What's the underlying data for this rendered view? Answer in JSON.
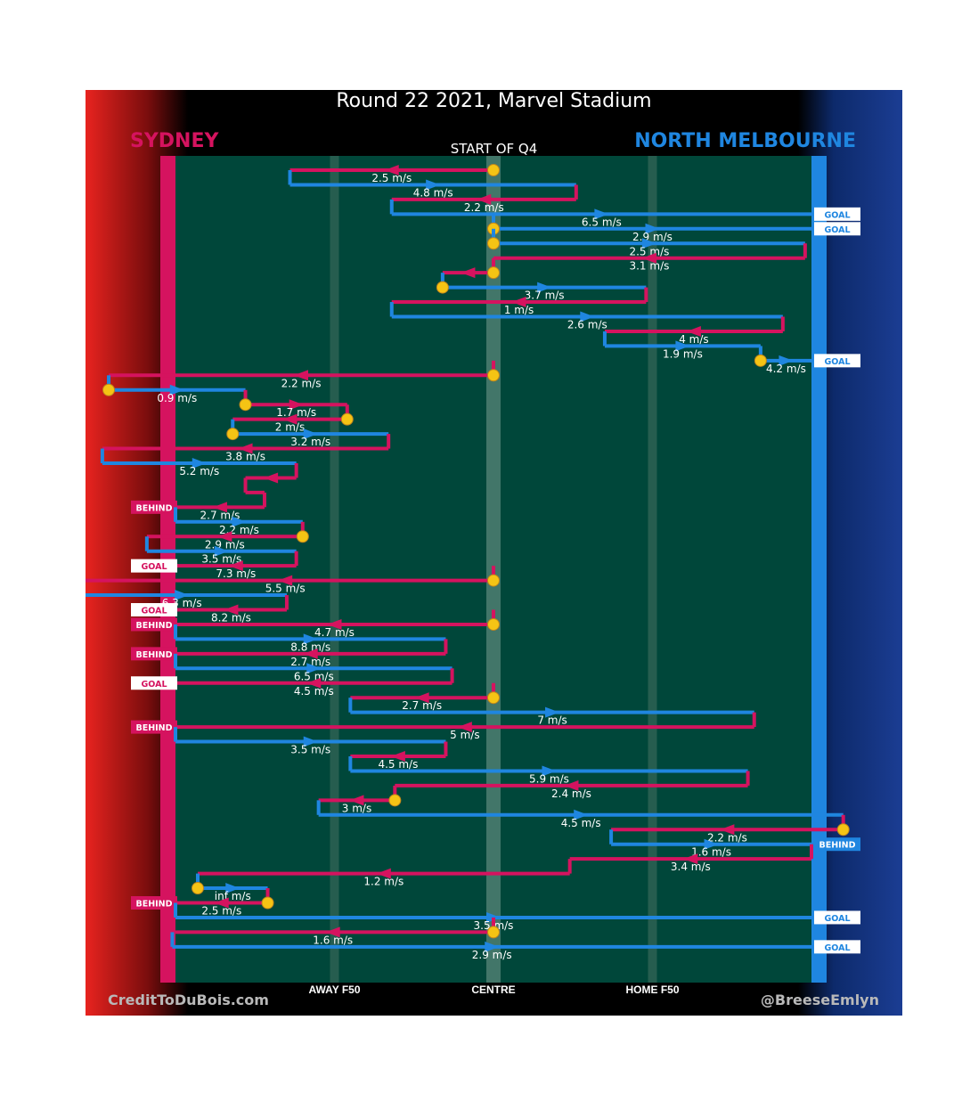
{
  "header": {
    "title": "Round 22 2021, Marvel Stadium",
    "team_left": "SYDNEY",
    "team_right": "NORTH MELBOURNE",
    "period": "START OF Q4"
  },
  "footer": {
    "left": "CreditToDuBois.com",
    "right": "@BreeseEmlyn"
  },
  "colors": {
    "sydney": "#d5135f",
    "north": "#1f86e0",
    "field": "#00473a",
    "stoppage": "#f5c414"
  },
  "chart_data": {
    "type": "chains",
    "title": "Round 22 2021, Marvel Stadium",
    "subtitle": "START OF Q4",
    "field_range": [
      -100,
      100
    ],
    "field_markers": [
      {
        "label": "AWAY F50",
        "x": -50
      },
      {
        "label": "CENTRE",
        "x": 0
      },
      {
        "label": "HOME F50",
        "x": 50
      }
    ],
    "chains": [
      {
        "team": "sydney",
        "from": 0,
        "to": -64,
        "speed": "2.5 m/s",
        "start": "stoppage"
      },
      {
        "team": "north",
        "from": -64,
        "to": 26,
        "speed": "4.8 m/s"
      },
      {
        "team": "sydney",
        "from": 26,
        "to": -32,
        "speed": "2.2 m/s"
      },
      {
        "team": "north",
        "from": -32,
        "to": 100,
        "speed": "6.5 m/s",
        "result": "GOAL"
      },
      {
        "team": "north",
        "from": 0,
        "to": 100,
        "speed": "2.9 m/s",
        "start": "stoppage",
        "result": "GOAL"
      },
      {
        "team": "north",
        "from": 0,
        "to": 98,
        "speed": "2.5 m/s",
        "start": "stoppage"
      },
      {
        "team": "sydney",
        "from": 98,
        "to": 0,
        "speed": "3.1 m/s"
      },
      {
        "team": "sydney",
        "from": 0,
        "to": -16,
        "speed": "",
        "start": "stoppage"
      },
      {
        "team": "north",
        "from": -16,
        "to": 48,
        "speed": "3.7 m/s",
        "start": "stoppage"
      },
      {
        "team": "sydney",
        "from": 48,
        "to": -32,
        "speed": "1 m/s"
      },
      {
        "team": "north",
        "from": -32,
        "to": 91,
        "speed": "2.6 m/s"
      },
      {
        "team": "sydney",
        "from": 91,
        "to": 35,
        "speed": "4 m/s"
      },
      {
        "team": "north",
        "from": 35,
        "to": 84,
        "speed": "1.9 m/s"
      },
      {
        "team": "north",
        "from": 84,
        "to": 100,
        "speed": "4.2 m/s",
        "start": "stoppage",
        "result": "GOAL"
      },
      {
        "team": "sydney",
        "from": 0,
        "to": -121,
        "speed": "2.2 m/s",
        "start": "stoppage"
      },
      {
        "team": "north",
        "from": -121,
        "to": -78,
        "speed": "0.9 m/s",
        "start": "stoppage"
      },
      {
        "team": "sydney",
        "from": -78,
        "to": -46,
        "speed": "1.7 m/s",
        "start": "stoppage"
      },
      {
        "team": "sydney",
        "from": -46,
        "to": -82,
        "speed": "2 m/s",
        "start": "stoppage"
      },
      {
        "team": "north",
        "from": -82,
        "to": -33,
        "speed": "3.2 m/s",
        "start": "stoppage"
      },
      {
        "team": "sydney",
        "from": -33,
        "to": -123,
        "speed": "3.8 m/s"
      },
      {
        "team": "north",
        "from": -123,
        "to": -62,
        "speed": "5.2 m/s"
      },
      {
        "team": "sydney",
        "from": -62,
        "to": -78,
        "speed": ""
      },
      {
        "team": "sydney",
        "from": -78,
        "to": -72,
        "speed": ""
      },
      {
        "team": "sydney",
        "from": -72,
        "to": -100,
        "speed": "2.7 m/s",
        "result": "BEHIND"
      },
      {
        "team": "north",
        "from": -100,
        "to": -60,
        "speed": "2.2 m/s"
      },
      {
        "team": "sydney",
        "from": -60,
        "to": -109,
        "speed": "2.9 m/s",
        "start": "stoppage"
      },
      {
        "team": "north",
        "from": -109,
        "to": -62,
        "speed": "3.5 m/s"
      },
      {
        "team": "sydney",
        "from": -62,
        "to": -100,
        "speed": "7.3 m/s",
        "result": "GOAL"
      },
      {
        "team": "sydney",
        "from": 0,
        "to": -131,
        "speed": "5.5 m/s",
        "start": "stoppage"
      },
      {
        "team": "north",
        "from": -131,
        "to": -65,
        "speed": "6.3 m/s"
      },
      {
        "team": "sydney",
        "from": -65,
        "to": -100,
        "speed": "8.2 m/s",
        "result": "GOAL"
      },
      {
        "team": "sydney",
        "from": 0,
        "to": -100,
        "speed": "4.7 m/s",
        "start": "stoppage",
        "result": "BEHIND"
      },
      {
        "team": "north",
        "from": -100,
        "to": -15,
        "speed": "8.8 m/s"
      },
      {
        "team": "sydney",
        "from": -15,
        "to": -100,
        "speed": "2.7 m/s",
        "result": "BEHIND"
      },
      {
        "team": "north",
        "from": -100,
        "to": -13,
        "speed": "6.5 m/s"
      },
      {
        "team": "sydney",
        "from": -13,
        "to": -100,
        "speed": "4.5 m/s",
        "result": "GOAL"
      },
      {
        "team": "sydney",
        "from": 0,
        "to": -45,
        "speed": "2.7 m/s",
        "start": "stoppage"
      },
      {
        "team": "north",
        "from": -45,
        "to": 82,
        "speed": "7 m/s"
      },
      {
        "team": "sydney",
        "from": 82,
        "to": -100,
        "speed": "5 m/s",
        "result": "BEHIND"
      },
      {
        "team": "north",
        "from": -100,
        "to": -15,
        "speed": "3.5 m/s"
      },
      {
        "team": "sydney",
        "from": -15,
        "to": -45,
        "speed": "4.5 m/s"
      },
      {
        "team": "north",
        "from": -45,
        "to": 80,
        "speed": "5.9 m/s"
      },
      {
        "team": "sydney",
        "from": 80,
        "to": -31,
        "speed": "2.4 m/s"
      },
      {
        "team": "sydney",
        "from": -31,
        "to": -55,
        "speed": "3 m/s",
        "start": "stoppage"
      },
      {
        "team": "north",
        "from": -55,
        "to": 110,
        "speed": "4.5 m/s"
      },
      {
        "team": "sydney",
        "from": 110,
        "to": 37,
        "speed": "2.2 m/s",
        "start": "stoppage"
      },
      {
        "team": "north",
        "from": 37,
        "to": 100,
        "speed": "1.6 m/s",
        "result": "BEHIND"
      },
      {
        "team": "sydney",
        "from": 100,
        "to": 24,
        "speed": "3.4 m/s"
      },
      {
        "team": "sydney",
        "from": 24,
        "to": -93,
        "speed": "1.2 m/s"
      },
      {
        "team": "north",
        "from": -93,
        "to": -71,
        "speed": "inf m/s",
        "start": "stoppage"
      },
      {
        "team": "sydney",
        "from": -71,
        "to": -100,
        "speed": "2.5 m/s",
        "start": "stoppage",
        "result": "BEHIND"
      },
      {
        "team": "north",
        "from": -100,
        "to": 100,
        "speed": "3.5 m/s",
        "result": "GOAL"
      },
      {
        "team": "sydney",
        "from": 0,
        "to": -101,
        "speed": "1.6 m/s",
        "start": "stoppage"
      },
      {
        "team": "north",
        "from": -101,
        "to": 100,
        "speed": "2.9 m/s",
        "result": "GOAL"
      }
    ]
  }
}
